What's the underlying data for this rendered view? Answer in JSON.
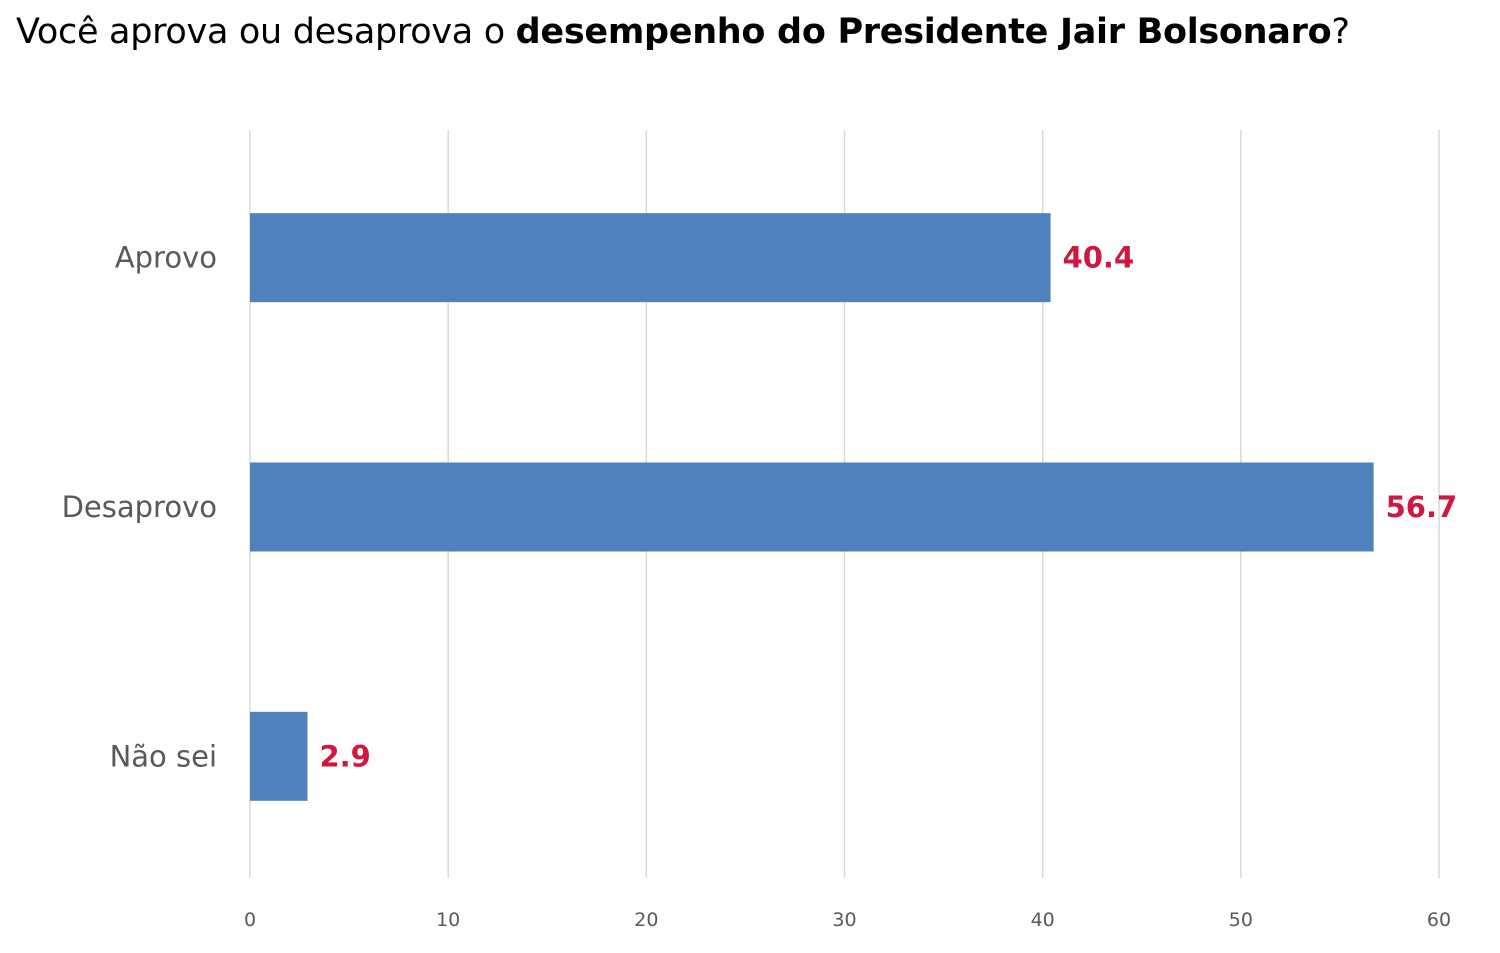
{
  "chart_data": {
    "type": "bar",
    "orientation": "horizontal",
    "title": {
      "regular": "Você aprova ou desaprova o ",
      "bold": "desempenho do Presidente Jair Bolsonaro",
      "suffix": "?"
    },
    "categories": [
      "Aprovo",
      "Desaprovo",
      "Não sei"
    ],
    "values": [
      40.4,
      56.7,
      2.9
    ],
    "value_labels": [
      "40.4",
      "56.7",
      "2.9"
    ],
    "xlim": [
      0,
      60
    ],
    "xticks": [
      0,
      10,
      20,
      30,
      40,
      50,
      60
    ],
    "xtick_labels": [
      "0",
      "10",
      "20",
      "30",
      "40",
      "50",
      "60"
    ],
    "xlabel": "",
    "ylabel": "",
    "grid": true,
    "legend": null,
    "colors": {
      "bar": "#4f81bd",
      "value_label": "#d0173f",
      "grid": "#d9d9d9",
      "category_text": "#595959"
    }
  }
}
